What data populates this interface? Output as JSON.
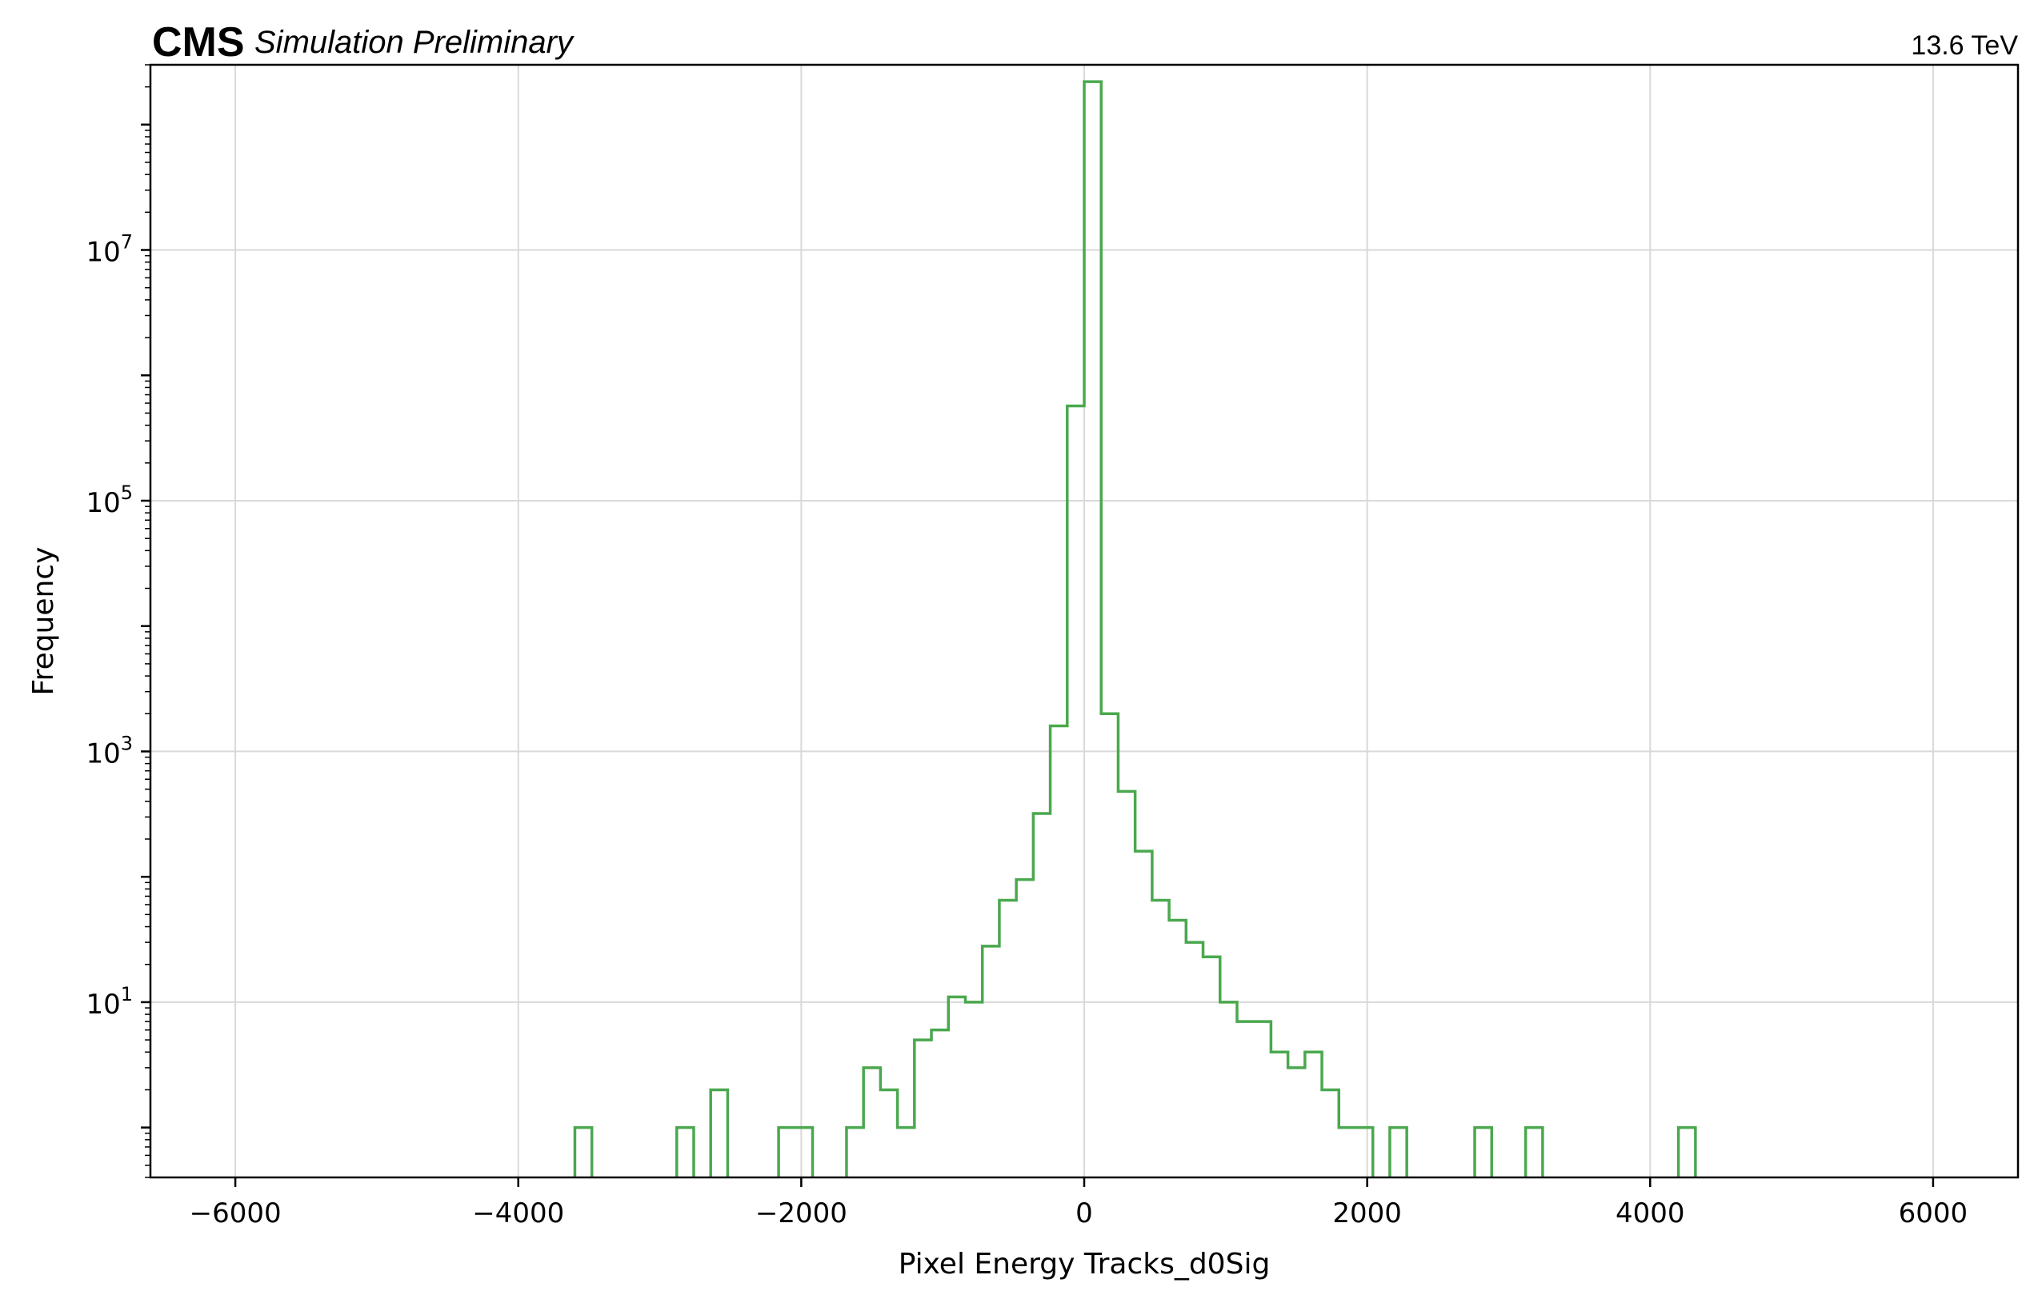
{
  "chart_data": {
    "type": "histogram",
    "experiment": "CMS",
    "experiment_sub": "Simulation Preliminary",
    "energy": "13.6 TeV",
    "xlabel": "Pixel Energy Tracks_d0Sig",
    "ylabel": "Frequency",
    "yscale": "log",
    "xlim": [
      -6600,
      6600
    ],
    "ylim": [
      0.4,
      300000000
    ],
    "grid": true,
    "line_color": "#4aa84e",
    "bin_width": 120,
    "xticks": [
      -6000,
      -4000,
      -2000,
      0,
      2000,
      4000,
      6000
    ],
    "xtick_labels": [
      "−6000",
      "−4000",
      "−2000",
      "0",
      "2000",
      "4000",
      "6000"
    ],
    "yticks": [
      10,
      1000,
      100000,
      10000000
    ],
    "ytick_labels": [
      {
        "base": "10",
        "exp": "1"
      },
      {
        "base": "10",
        "exp": "3"
      },
      {
        "base": "10",
        "exp": "5"
      },
      {
        "base": "10",
        "exp": "7"
      }
    ],
    "bins": [
      {
        "x0": -3600,
        "x1": -3480,
        "value": 1
      },
      {
        "x0": -2880,
        "x1": -2760,
        "value": 1
      },
      {
        "x0": -2640,
        "x1": -2520,
        "value": 2
      },
      {
        "x0": -2160,
        "x1": -1920,
        "value": 1
      },
      {
        "x0": -1680,
        "x1": -1560,
        "value": 1
      },
      {
        "x0": -1560,
        "x1": -1440,
        "value": 3
      },
      {
        "x0": -1440,
        "x1": -1320,
        "value": 2
      },
      {
        "x0": -1320,
        "x1": -1200,
        "value": 1
      },
      {
        "x0": -1200,
        "x1": -1080,
        "value": 5
      },
      {
        "x0": -1080,
        "x1": -960,
        "value": 6
      },
      {
        "x0": -960,
        "x1": -840,
        "value": 11
      },
      {
        "x0": -840,
        "x1": -720,
        "value": 10
      },
      {
        "x0": -720,
        "x1": -600,
        "value": 28
      },
      {
        "x0": -600,
        "x1": -480,
        "value": 65
      },
      {
        "x0": -480,
        "x1": -360,
        "value": 95
      },
      {
        "x0": -360,
        "x1": -240,
        "value": 320
      },
      {
        "x0": -240,
        "x1": -120,
        "value": 1600
      },
      {
        "x0": -120,
        "x1": 0,
        "value": 570000
      },
      {
        "x0": 0,
        "x1": 120,
        "value": 220000000
      },
      {
        "x0": 120,
        "x1": 240,
        "value": 2000
      },
      {
        "x0": 240,
        "x1": 360,
        "value": 480
      },
      {
        "x0": 360,
        "x1": 480,
        "value": 160
      },
      {
        "x0": 480,
        "x1": 600,
        "value": 65
      },
      {
        "x0": 600,
        "x1": 720,
        "value": 45
      },
      {
        "x0": 720,
        "x1": 840,
        "value": 30
      },
      {
        "x0": 840,
        "x1": 960,
        "value": 23
      },
      {
        "x0": 960,
        "x1": 1080,
        "value": 10
      },
      {
        "x0": 1080,
        "x1": 1320,
        "value": 7
      },
      {
        "x0": 1320,
        "x1": 1440,
        "value": 4
      },
      {
        "x0": 1440,
        "x1": 1560,
        "value": 3
      },
      {
        "x0": 1560,
        "x1": 1680,
        "value": 4
      },
      {
        "x0": 1680,
        "x1": 1800,
        "value": 2
      },
      {
        "x0": 1800,
        "x1": 2040,
        "value": 1
      },
      {
        "x0": 2160,
        "x1": 2280,
        "value": 1
      },
      {
        "x0": 2760,
        "x1": 2880,
        "value": 1
      },
      {
        "x0": 3120,
        "x1": 3240,
        "value": 1
      },
      {
        "x0": 4200,
        "x1": 4320,
        "value": 1
      }
    ]
  }
}
